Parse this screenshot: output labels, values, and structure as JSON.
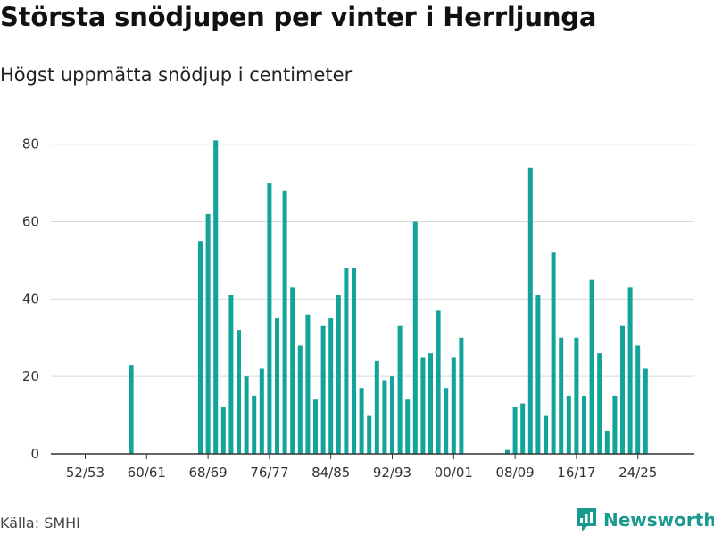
{
  "title": "Största snödjupen per vinter i Herrljunga",
  "subtitle": "Högst uppmätta snödjup i centimeter",
  "source": "Källa: SMHI",
  "brand": {
    "name": "Newsworthy",
    "icon": "bar-chart-logo-icon"
  },
  "colors": {
    "bar": "#12a39a",
    "grid": "#d9d9d9",
    "axis": "#333333",
    "brand": "#1a9a8e"
  },
  "chart_data": {
    "type": "bar",
    "title": "Största snödjupen per vinter i Herrljunga",
    "subtitle": "Högst uppmätta snödjup i centimeter",
    "ylabel": "",
    "xlabel": "",
    "ylim": [
      0,
      85
    ],
    "yticks": [
      0,
      20,
      40,
      60,
      80
    ],
    "xticks": [
      "52/53",
      "60/61",
      "68/69",
      "76/77",
      "84/85",
      "92/93",
      "00/01",
      "08/09",
      "16/17",
      "24/25"
    ],
    "grid": true,
    "categories": [
      "52/53",
      "53/54",
      "54/55",
      "55/56",
      "56/57",
      "57/58",
      "58/59",
      "59/60",
      "60/61",
      "61/62",
      "62/63",
      "63/64",
      "64/65",
      "65/66",
      "66/67",
      "67/68",
      "68/69",
      "69/70",
      "70/71",
      "71/72",
      "72/73",
      "73/74",
      "74/75",
      "75/76",
      "76/77",
      "77/78",
      "78/79",
      "79/80",
      "80/81",
      "81/82",
      "82/83",
      "83/84",
      "84/85",
      "85/86",
      "86/87",
      "87/88",
      "88/89",
      "89/90",
      "90/91",
      "91/92",
      "92/93",
      "93/94",
      "94/95",
      "95/96",
      "96/97",
      "97/98",
      "98/99",
      "99/00",
      "00/01",
      "01/02",
      "02/03",
      "03/04",
      "04/05",
      "05/06",
      "06/07",
      "07/08",
      "08/09",
      "09/10",
      "10/11",
      "11/12",
      "12/13",
      "13/14",
      "14/15",
      "15/16",
      "16/17",
      "17/18",
      "18/19",
      "19/20",
      "20/21",
      "21/22",
      "22/23",
      "23/24",
      "24/25",
      "25/26"
    ],
    "values": [
      null,
      null,
      null,
      null,
      null,
      null,
      23,
      null,
      null,
      null,
      null,
      null,
      null,
      null,
      null,
      55,
      62,
      81,
      12,
      41,
      32,
      20,
      15,
      22,
      70,
      35,
      68,
      43,
      28,
      36,
      14,
      33,
      35,
      41,
      48,
      48,
      17,
      10,
      24,
      19,
      20,
      33,
      14,
      60,
      25,
      26,
      37,
      17,
      25,
      30,
      null,
      null,
      null,
      null,
      null,
      1,
      12,
      13,
      74,
      41,
      10,
      52,
      30,
      15,
      30,
      15,
      45,
      26,
      6,
      15,
      33,
      43,
      28,
      22
    ]
  }
}
